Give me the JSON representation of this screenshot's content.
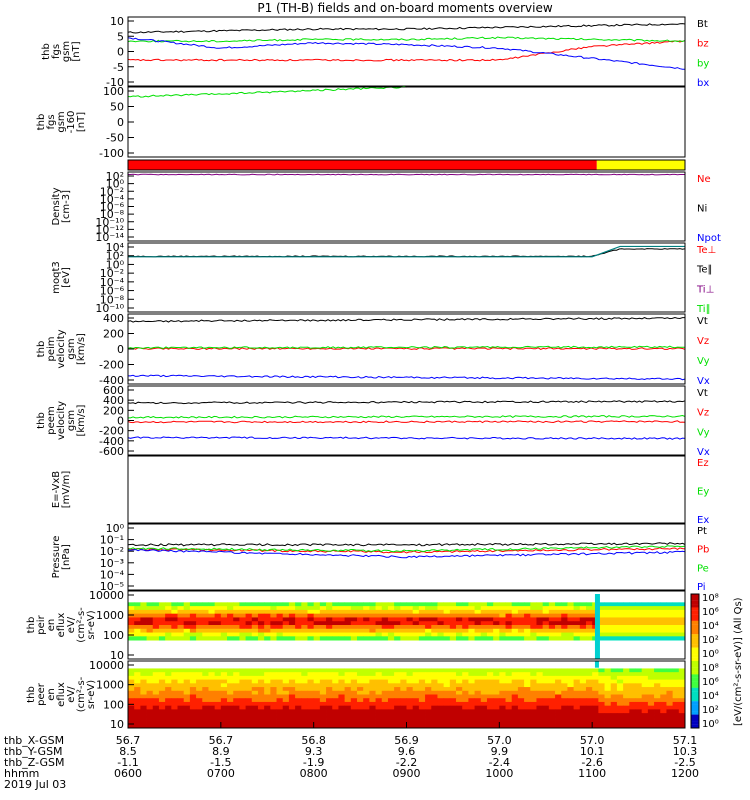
{
  "title": "P1 (TH-B) fields and on-board moments overview",
  "colors": {
    "red": "#ff0000",
    "green": "#00e000",
    "blue": "#0000ff",
    "black": "#000000",
    "yellow": "#ffff00",
    "teal": "#008080",
    "cyan": "#00c0ff",
    "purple": "#800080"
  },
  "time_axis": {
    "rows": [
      {
        "label": "thb_X-GSM",
        "values": [
          "56.7",
          "56.7",
          "56.8",
          "56.9",
          "57.0",
          "57.0",
          "57.1"
        ]
      },
      {
        "label": "thb_Y-GSM",
        "values": [
          "8.5",
          "8.9",
          "9.3",
          "9.6",
          "9.9",
          "10.1",
          "10.3"
        ]
      },
      {
        "label": "thb_Z-GSM",
        "values": [
          "-1.1",
          "-1.5",
          "-1.9",
          "-2.2",
          "-2.4",
          "-2.6",
          "-2.5"
        ]
      },
      {
        "label": "hhmm",
        "values": [
          "0600",
          "0700",
          "0800",
          "0900",
          "1000",
          "1100",
          "1200"
        ]
      }
    ],
    "date": "2019 Jul 03"
  },
  "chart_data": [
    {
      "type": "line",
      "panel": "fgs",
      "ylabel": [
        "thb",
        "fgs",
        "gsm",
        "[nT]"
      ],
      "yticks": [
        "10",
        "5",
        "0",
        "-5",
        "-10"
      ],
      "ylim": [
        -10,
        10
      ],
      "legend": [
        {
          "name": "Bt",
          "color": "#000000"
        },
        {
          "name": "bz",
          "color": "#ff0000"
        },
        {
          "name": "by",
          "color": "#00e000"
        },
        {
          "name": "bx",
          "color": "#0000ff"
        }
      ],
      "series": [
        {
          "name": "Bt",
          "x": [
            0,
            1,
            2,
            3,
            4,
            5,
            6
          ],
          "y": [
            5.5,
            6,
            6.5,
            6.5,
            7,
            7.5,
            8
          ]
        },
        {
          "name": "bz",
          "x": [
            0,
            1,
            2,
            3,
            4,
            5,
            6
          ],
          "y": [
            -2.5,
            -2.5,
            -2.5,
            -2.5,
            -2.5,
            1.5,
            3
          ]
        },
        {
          "name": "by",
          "x": [
            0,
            1,
            2,
            3,
            4,
            5,
            6
          ],
          "y": [
            3,
            3,
            3.5,
            3.5,
            4,
            3.5,
            3
          ]
        },
        {
          "name": "bx",
          "x": [
            0,
            1,
            2,
            3,
            4,
            5,
            6
          ],
          "y": [
            4,
            1,
            2.5,
            2,
            1,
            -2,
            -5
          ]
        }
      ]
    },
    {
      "type": "line",
      "panel": "fgs-160",
      "ylabel": [
        "thb",
        "fgs",
        "gsm",
        "-160",
        "[nT]"
      ],
      "yticks": [
        "100",
        "50",
        "0",
        "-50",
        "-100"
      ],
      "ylim": [
        -130,
        100
      ],
      "series": [
        {
          "name": "",
          "x": [
            0,
            1,
            2,
            3
          ],
          "y": [
            68,
            77,
            89,
            100
          ]
        }
      ]
    },
    {
      "type": "bar",
      "panel": "mode-bar",
      "segments": [
        {
          "from": 0,
          "to": 5.05,
          "color": "#ff0000"
        },
        {
          "from": 5.05,
          "to": 6,
          "color": "#ffff00"
        }
      ]
    },
    {
      "type": "line",
      "panel": "density",
      "ylabel": [
        "Density",
        "[cm-3]"
      ],
      "yticks": [
        "10²",
        "10⁰",
        "10⁻²",
        "10⁻⁴",
        "10⁻⁶",
        "10⁻⁸",
        "10⁻¹⁰",
        "10⁻¹²",
        "10⁻¹⁴"
      ],
      "ylim": [
        -14,
        2
      ],
      "log": true,
      "legend": [
        {
          "name": "Ne",
          "color": "#ff0000"
        },
        {
          "name": "Ni",
          "color": "#000000"
        },
        {
          "name": "Npot",
          "color": "#0000ff"
        }
      ],
      "series": [
        {
          "name": "Ne",
          "x": [
            0,
            6
          ],
          "y": [
            1.4,
            1.4
          ]
        }
      ]
    },
    {
      "type": "line",
      "panel": "moqt3",
      "ylabel": [
        "moqt3",
        "[eV]"
      ],
      "yticks": [
        "10⁴",
        "10²",
        "10⁰",
        "10⁻²",
        "10⁻⁴",
        "10⁻⁶",
        "10⁻⁸",
        "10⁻¹⁰"
      ],
      "ylim": [
        -10,
        4
      ],
      "log": true,
      "legend": [
        {
          "name": "Te⊥",
          "color": "#ff0000"
        },
        {
          "name": "Te∥",
          "color": "#000000"
        },
        {
          "name": "Ti⊥",
          "color": "#800080"
        },
        {
          "name": "Ti∥",
          "color": "#00e000"
        }
      ],
      "series": [
        {
          "name": "T",
          "x": [
            0,
            5,
            5.3,
            6
          ],
          "y": [
            1.3,
            1.3,
            2.8,
            2.8
          ]
        }
      ]
    },
    {
      "type": "line",
      "panel": "peim",
      "ylabel": [
        "thb",
        "peim",
        "velocity",
        "gsm",
        "[km/s]"
      ],
      "yticks": [
        "400",
        "200",
        "0",
        "-200",
        "-400"
      ],
      "ylim": [
        -430,
        420
      ],
      "legend": [
        {
          "name": "Vt",
          "color": "#000000"
        },
        {
          "name": "Vz",
          "color": "#ff0000"
        },
        {
          "name": "Vy",
          "color": "#00e000"
        },
        {
          "name": "Vx",
          "color": "#0000ff"
        }
      ],
      "series": [
        {
          "name": "Vt",
          "x": [
            0,
            6
          ],
          "y": [
            330,
            370
          ]
        },
        {
          "name": "Vz",
          "x": [
            0,
            6
          ],
          "y": [
            0,
            0
          ]
        },
        {
          "name": "Vy",
          "x": [
            0,
            6
          ],
          "y": [
            10,
            20
          ]
        },
        {
          "name": "Vx",
          "x": [
            0,
            6
          ],
          "y": [
            -330,
            -370
          ]
        }
      ]
    },
    {
      "type": "line",
      "panel": "peem",
      "ylabel": [
        "thb",
        "peem",
        "velocity",
        "gsm",
        "[km/s]"
      ],
      "yticks": [
        "600",
        "400",
        "200",
        "0",
        "-200",
        "-400",
        "-600"
      ],
      "ylim": [
        -650,
        650
      ],
      "legend": [
        {
          "name": "Vt",
          "color": "#000000"
        },
        {
          "name": "Vz",
          "color": "#ff0000"
        },
        {
          "name": "Vy",
          "color": "#00e000"
        },
        {
          "name": "Vx",
          "color": "#0000ff"
        }
      ],
      "series": [
        {
          "name": "Vt",
          "x": [
            0,
            6
          ],
          "y": [
            330,
            360
          ]
        },
        {
          "name": "Vz",
          "x": [
            0,
            6
          ],
          "y": [
            -30,
            -20
          ]
        },
        {
          "name": "Vy",
          "x": [
            0,
            6
          ],
          "y": [
            60,
            80
          ]
        },
        {
          "name": "Vx",
          "x": [
            0,
            6
          ],
          "y": [
            -320,
            -340
          ]
        }
      ]
    },
    {
      "type": "line",
      "panel": "efield",
      "ylabel": [
        "E=-VxB",
        "[mV/m]"
      ],
      "legend": [
        {
          "name": "Ez",
          "color": "#ff0000"
        },
        {
          "name": "Ey",
          "color": "#00e000"
        },
        {
          "name": "Ex",
          "color": "#0000ff"
        }
      ],
      "series": []
    },
    {
      "type": "line",
      "panel": "pressure",
      "ylabel": [
        "Pressure",
        "[nPa]"
      ],
      "yticks": [
        "10⁰",
        "10⁻¹",
        "10⁻²",
        "10⁻³",
        "10⁻⁴",
        "10⁻⁵"
      ],
      "ylim": [
        -5.3,
        0.1
      ],
      "log": true,
      "legend": [
        {
          "name": "Pt",
          "color": "#000000"
        },
        {
          "name": "Pb",
          "color": "#ff0000"
        },
        {
          "name": "Pe",
          "color": "#00e000"
        },
        {
          "name": "Pi",
          "color": "#0000ff"
        }
      ],
      "series": [
        {
          "name": "Pt",
          "x": [
            0,
            3,
            6
          ],
          "y": [
            -1.6,
            -1.6,
            -1.5
          ]
        },
        {
          "name": "Pb",
          "x": [
            0,
            3,
            6
          ],
          "y": [
            -1.95,
            -2.2,
            -1.9
          ]
        },
        {
          "name": "Pe",
          "x": [
            0,
            3,
            6
          ],
          "y": [
            -1.9,
            -2.1,
            -1.7
          ]
        },
        {
          "name": "Pi",
          "x": [
            0,
            3,
            6
          ],
          "y": [
            -2.0,
            -2.6,
            -2.2
          ]
        }
      ]
    },
    {
      "type": "heatmap",
      "panel": "peir",
      "ylabel": [
        "thb",
        "peir",
        "en",
        "eflux",
        "eV/",
        "(cm²-s-",
        "sr-eV)"
      ],
      "yticks": [
        "10000",
        "1000",
        "100",
        "10"
      ],
      "ylim": [
        5,
        15000
      ],
      "log": true
    },
    {
      "type": "heatmap",
      "panel": "peer",
      "ylabel": [
        "thb",
        "peer",
        "en",
        "eflux",
        "eV/",
        "(cm²-s-",
        "sr-eV)"
      ],
      "yticks": [
        "10000",
        "1000",
        "100",
        "10"
      ],
      "ylim": [
        5,
        15000
      ],
      "log": true
    },
    {
      "type": "heatmap",
      "panel": "colorbar",
      "labels": [
        "10⁸",
        "10⁶",
        "10⁴",
        "10²",
        "10⁰",
        "10⁸",
        "10⁶",
        "10⁴",
        "10²",
        "10⁰"
      ],
      "caption": "[eV/(cm²-s-sr-eV)] (All Qs)"
    }
  ]
}
